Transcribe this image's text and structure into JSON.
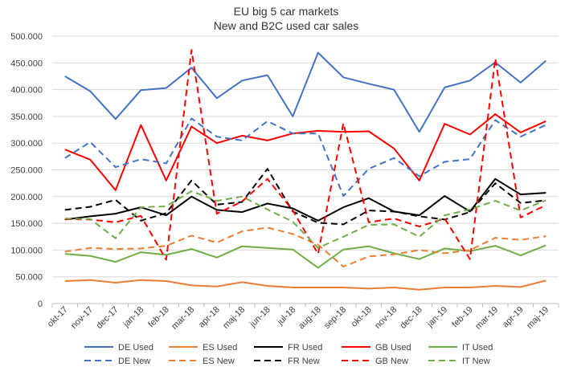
{
  "chart_data": {
    "type": "line",
    "title": "EU big 5 car markets",
    "subtitle": "New and B2C used car sales",
    "categories": [
      "okt-17",
      "nov-17",
      "dec-17",
      "jan-18",
      "feb-18",
      "mar-18",
      "apr-18",
      "maj-18",
      "jun-18",
      "jul-18",
      "aug-18",
      "sep-18",
      "okt-18",
      "nov-18",
      "dec-18",
      "jan-19",
      "feb-19",
      "mar-19",
      "apr-19",
      "maj-19"
    ],
    "ylim": [
      0,
      500000
    ],
    "yticks": [
      "0",
      "50.000",
      "100.000",
      "150.000",
      "200.000",
      "250.000",
      "300.000",
      "350.000",
      "400.000",
      "450.000",
      "500.000"
    ],
    "grid": true,
    "legend_position": "bottom",
    "series": [
      {
        "name": "DE Used",
        "color": "#4472C4",
        "dash": "solid",
        "values": [
          425000,
          397000,
          345000,
          399000,
          403000,
          441000,
          384000,
          417000,
          427000,
          350000,
          469000,
          423000,
          411000,
          400000,
          321000,
          404000,
          417000,
          451000,
          413000,
          454000
        ]
      },
      {
        "name": "ES Used",
        "color": "#ED7D31",
        "dash": "solid",
        "values": [
          42000,
          44000,
          39000,
          44000,
          42000,
          34000,
          32000,
          40000,
          33000,
          30000,
          30000,
          30000,
          28000,
          30000,
          26000,
          30000,
          30000,
          33000,
          31000,
          43000
        ]
      },
      {
        "name": "FR Used",
        "color": "#000000",
        "dash": "solid",
        "values": [
          157000,
          163000,
          168000,
          180000,
          165000,
          200000,
          175000,
          171000,
          187000,
          178000,
          155000,
          180000,
          197000,
          172000,
          165000,
          201000,
          172000,
          233000,
          204000,
          207000
        ]
      },
      {
        "name": "GB Used",
        "color": "#FF0000",
        "dash": "solid",
        "values": [
          288000,
          269000,
          212000,
          334000,
          230000,
          331000,
          300000,
          314000,
          305000,
          318000,
          323000,
          321000,
          322000,
          290000,
          230000,
          336000,
          316000,
          354000,
          320000,
          341000
        ]
      },
      {
        "name": "IT Used",
        "color": "#70AD47",
        "dash": "solid",
        "values": [
          93000,
          89000,
          78000,
          96000,
          91000,
          102000,
          86000,
          107000,
          104000,
          101000,
          67000,
          101000,
          107000,
          94000,
          83000,
          103000,
          98000,
          108000,
          90000,
          109000
        ]
      },
      {
        "name": "DE New",
        "color": "#4472C4",
        "dash": "dashed",
        "values": [
          272000,
          302000,
          255000,
          270000,
          262000,
          346000,
          312000,
          305000,
          341000,
          318000,
          318000,
          201000,
          252000,
          272000,
          238000,
          265000,
          270000,
          343000,
          312000,
          334000
        ]
      },
      {
        "name": "ES New",
        "color": "#ED7D31",
        "dash": "dashed",
        "values": [
          97000,
          104000,
          102000,
          103000,
          108000,
          127000,
          114000,
          135000,
          142000,
          130000,
          110000,
          69000,
          88000,
          92000,
          100000,
          94000,
          100000,
          123000,
          119000,
          126000
        ]
      },
      {
        "name": "FR New",
        "color": "#000000",
        "dash": "dashed",
        "values": [
          175000,
          181000,
          194000,
          155000,
          169000,
          230000,
          185000,
          190000,
          252000,
          172000,
          151000,
          148000,
          174000,
          172000,
          163000,
          157000,
          171000,
          225000,
          188000,
          193000
        ]
      },
      {
        "name": "GB New",
        "color": "#FF0000",
        "dash": "dashed",
        "values": [
          158000,
          157000,
          152000,
          164000,
          82000,
          474000,
          168000,
          191000,
          233000,
          174000,
          93000,
          337000,
          152000,
          159000,
          144000,
          159000,
          83000,
          458000,
          161000,
          184000
        ]
      },
      {
        "name": "IT New",
        "color": "#70AD47",
        "dash": "dashed",
        "values": [
          159000,
          158000,
          122000,
          180000,
          182000,
          210000,
          192000,
          200000,
          176000,
          153000,
          104000,
          125000,
          147000,
          148000,
          125000,
          165000,
          176000,
          192000,
          174000,
          193000
        ]
      }
    ]
  }
}
